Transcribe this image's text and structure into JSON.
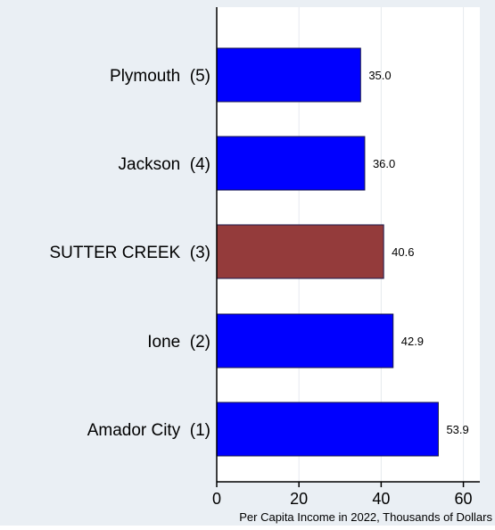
{
  "chart_data": {
    "type": "bar",
    "orientation": "horizontal",
    "title": "",
    "xlabel": "Per Capita Income in 2022, Thousands of Dollars",
    "ylabel": "",
    "xlim": [
      0,
      64
    ],
    "x_ticks": [
      0,
      20,
      40,
      60
    ],
    "x_tick_labels": [
      "0",
      "20",
      "40",
      "60"
    ],
    "grid": "vertical gridlines",
    "legend": "none",
    "categories": [
      "Plymouth  (5)",
      "Jackson  (4)",
      "SUTTER CREEK  (3)",
      "Ione  (2)",
      "Amador City  (1)"
    ],
    "values": [
      35.0,
      36.0,
      40.6,
      42.9,
      53.9
    ],
    "data_labels": [
      "35.0",
      "36.0",
      "40.6",
      "42.9",
      "53.9"
    ],
    "highlight_index": 2,
    "colors": {
      "background": "#eaeff4",
      "plot_background": "#ffffff",
      "bar": "#0000ff",
      "bar_highlight": "#943b3b",
      "bar_edge": "#1a1a4d",
      "grid": "#e6eaee",
      "axis": "#000000",
      "text": "#000000"
    }
  }
}
